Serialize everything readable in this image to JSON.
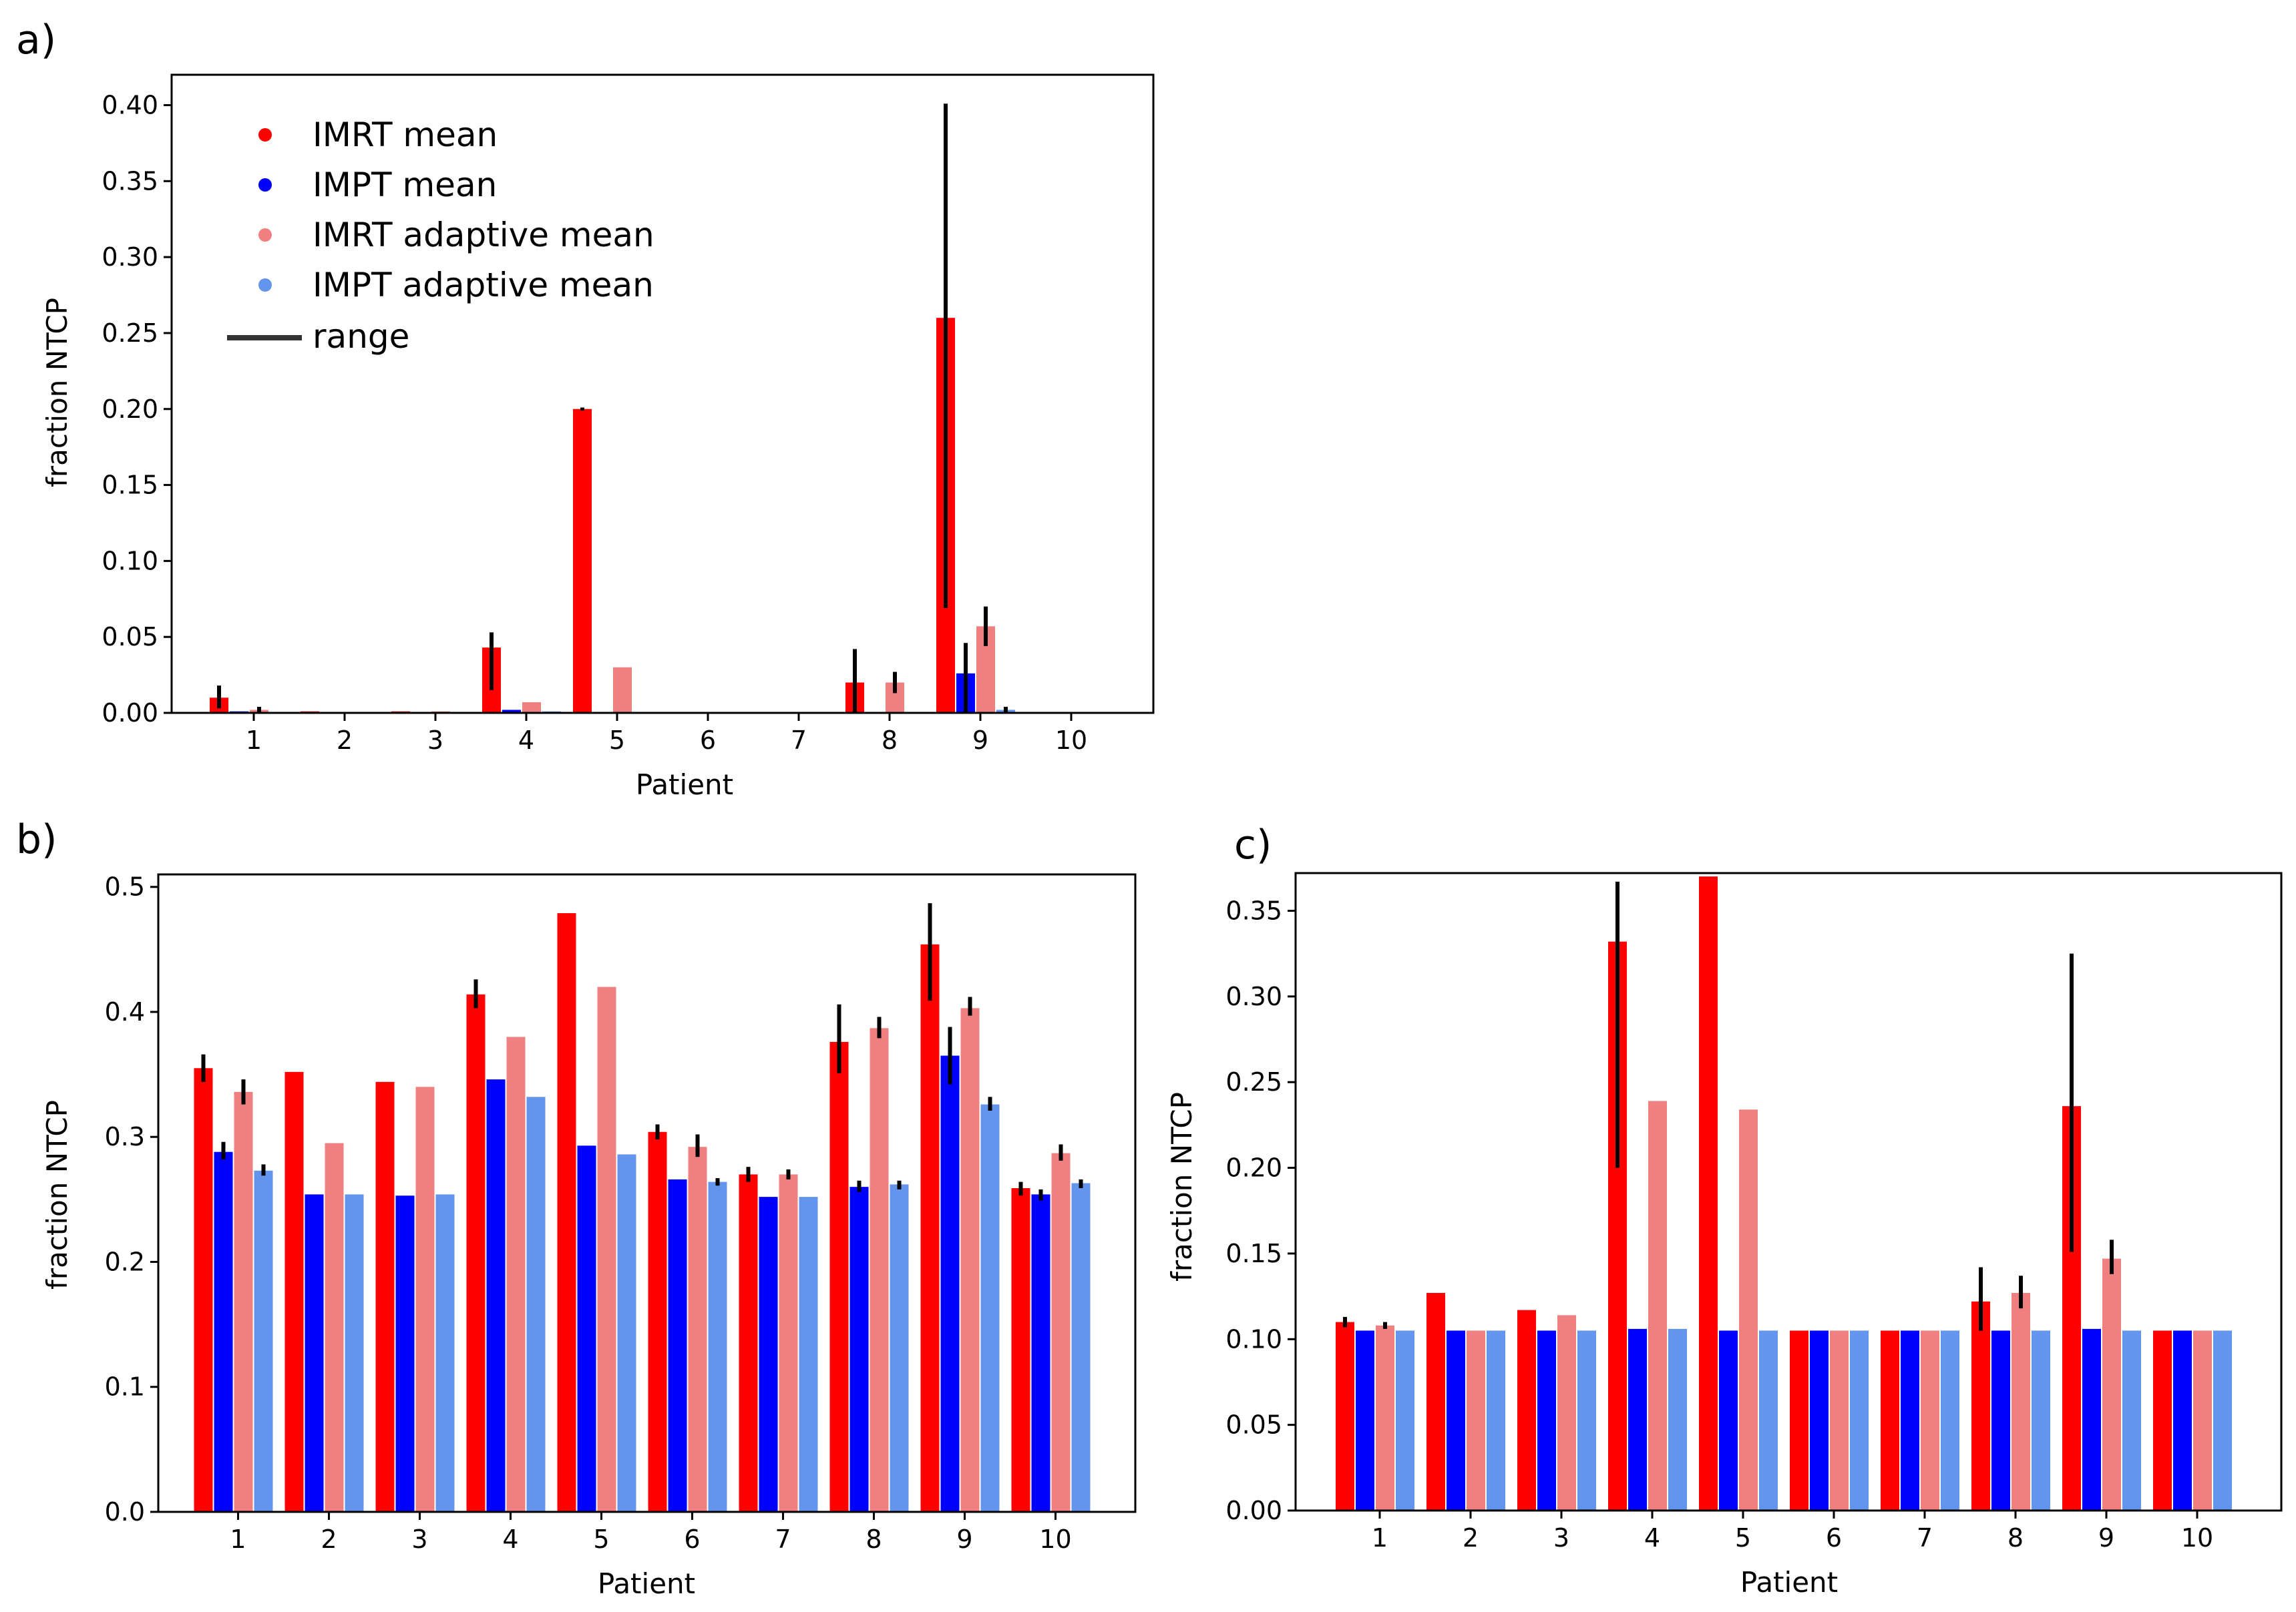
{
  "series_styles": [
    {
      "key": "imrt",
      "color": "#ff0000"
    },
    {
      "key": "impt",
      "color": "#0000ff"
    },
    {
      "key": "imrt_adaptive",
      "color": "#f08080"
    },
    {
      "key": "impt_adaptive",
      "color": "#6495ed"
    }
  ],
  "legend": {
    "items": [
      "IMRT mean",
      "IMPT mean",
      "IMRT adaptive mean",
      "IMPT adaptive mean"
    ],
    "range_label": "range",
    "range_color": "#000000"
  },
  "chart_data": [
    {
      "panel_label": "a)",
      "type": "bar",
      "xlabel": "Patient",
      "ylabel": "fraction NTCP",
      "categories": [
        "1",
        "2",
        "3",
        "4",
        "5",
        "6",
        "7",
        "8",
        "9",
        "10"
      ],
      "ylim": [
        0,
        0.42
      ],
      "yticks": [
        0.0,
        0.05,
        0.1,
        0.15,
        0.2,
        0.25,
        0.3,
        0.35,
        0.4
      ],
      "ytick_labels": [
        "0.00",
        "0.05",
        "0.10",
        "0.15",
        "0.20",
        "0.25",
        "0.30",
        "0.35",
        "0.40"
      ],
      "series": [
        {
          "name": "IMRT mean",
          "values": [
            0.01,
            0.001,
            0.001,
            0.043,
            0.2,
            0.0,
            0.0,
            0.02,
            0.26,
            0.0
          ],
          "ranges": [
            [
              0.003,
              0.018
            ],
            null,
            null,
            [
              0.015,
              0.053
            ],
            [
              0.199,
              0.201
            ],
            null,
            null,
            [
              0.0,
              0.042
            ],
            [
              0.069,
              0.401
            ],
            null
          ]
        },
        {
          "name": "IMPT mean",
          "values": [
            0.001,
            0.0,
            0.0,
            0.002,
            0.0,
            0.0,
            0.0,
            0.0,
            0.026,
            0.0
          ],
          "ranges": [
            null,
            null,
            null,
            null,
            null,
            null,
            null,
            null,
            [
              0.0,
              0.046
            ],
            null
          ]
        },
        {
          "name": "IMRT adaptive mean",
          "values": [
            0.002,
            0.0,
            0.001,
            0.007,
            0.03,
            0.0,
            0.0,
            0.02,
            0.057,
            0.0
          ],
          "ranges": [
            [
              0.0,
              0.004
            ],
            null,
            null,
            null,
            null,
            null,
            null,
            [
              0.013,
              0.027
            ],
            [
              0.044,
              0.07
            ],
            null
          ]
        },
        {
          "name": "IMPT adaptive mean",
          "values": [
            0.0,
            0.0,
            0.0,
            0.001,
            0.0,
            0.0,
            0.0,
            0.0,
            0.002,
            0.0
          ],
          "ranges": [
            null,
            null,
            null,
            null,
            null,
            null,
            null,
            null,
            [
              0.0,
              0.004
            ],
            null
          ]
        }
      ]
    },
    {
      "panel_label": "b)",
      "type": "bar",
      "xlabel": "Patient",
      "ylabel": "fraction NTCP",
      "categories": [
        "1",
        "2",
        "3",
        "4",
        "5",
        "6",
        "7",
        "8",
        "9",
        "10"
      ],
      "ylim": [
        0,
        0.51
      ],
      "yticks": [
        0.0,
        0.1,
        0.2,
        0.3,
        0.4,
        0.5
      ],
      "ytick_labels": [
        "0.0",
        "0.1",
        "0.2",
        "0.3",
        "0.4",
        "0.5"
      ],
      "series": [
        {
          "name": "IMRT mean",
          "values": [
            0.355,
            0.352,
            0.344,
            0.414,
            0.479,
            0.304,
            0.27,
            0.376,
            0.454,
            0.259
          ],
          "ranges": [
            [
              0.344,
              0.366
            ],
            null,
            null,
            [
              0.403,
              0.426
            ],
            null,
            [
              0.298,
              0.31
            ],
            [
              0.264,
              0.276
            ],
            [
              0.351,
              0.406
            ],
            [
              0.409,
              0.487
            ],
            [
              0.253,
              0.264
            ]
          ]
        },
        {
          "name": "IMPT mean",
          "values": [
            0.288,
            0.254,
            0.253,
            0.346,
            0.293,
            0.266,
            0.252,
            0.26,
            0.365,
            0.254
          ],
          "ranges": [
            [
              0.282,
              0.296
            ],
            null,
            null,
            null,
            null,
            null,
            null,
            [
              0.256,
              0.265
            ],
            [
              0.342,
              0.388
            ],
            [
              0.249,
              0.258
            ]
          ]
        },
        {
          "name": "IMRT adaptive mean",
          "values": [
            0.336,
            0.295,
            0.34,
            0.38,
            0.42,
            0.292,
            0.27,
            0.387,
            0.403,
            0.287
          ],
          "ranges": [
            [
              0.326,
              0.346
            ],
            null,
            null,
            null,
            null,
            [
              0.284,
              0.302
            ],
            [
              0.266,
              0.274
            ],
            [
              0.379,
              0.396
            ],
            [
              0.397,
              0.412
            ],
            [
              0.281,
              0.294
            ]
          ]
        },
        {
          "name": "IMPT adaptive mean",
          "values": [
            0.273,
            0.254,
            0.254,
            0.332,
            0.286,
            0.264,
            0.252,
            0.262,
            0.326,
            0.263
          ],
          "ranges": [
            [
              0.269,
              0.278
            ],
            null,
            null,
            null,
            null,
            [
              0.261,
              0.267
            ],
            null,
            [
              0.258,
              0.265
            ],
            [
              0.321,
              0.332
            ],
            [
              0.259,
              0.266
            ]
          ]
        }
      ]
    },
    {
      "panel_label": "c)",
      "type": "bar",
      "xlabel": "Patient",
      "ylabel": "fraction NTCP",
      "categories": [
        "1",
        "2",
        "3",
        "4",
        "5",
        "6",
        "7",
        "8",
        "9",
        "10"
      ],
      "ylim": [
        0,
        0.372
      ],
      "yticks": [
        0.0,
        0.05,
        0.1,
        0.15,
        0.2,
        0.25,
        0.3,
        0.35
      ],
      "ytick_labels": [
        "0.00",
        "0.05",
        "0.10",
        "0.15",
        "0.20",
        "0.25",
        "0.30",
        "0.35"
      ],
      "series": [
        {
          "name": "IMRT mean",
          "values": [
            0.11,
            0.127,
            0.117,
            0.332,
            0.37,
            0.105,
            0.105,
            0.122,
            0.236,
            0.105
          ],
          "ranges": [
            [
              0.107,
              0.113
            ],
            null,
            null,
            [
              0.2,
              0.367
            ],
            null,
            null,
            null,
            [
              0.105,
              0.142
            ],
            [
              0.151,
              0.325
            ],
            null
          ]
        },
        {
          "name": "IMPT mean",
          "values": [
            0.105,
            0.105,
            0.105,
            0.106,
            0.105,
            0.105,
            0.105,
            0.105,
            0.106,
            0.105
          ],
          "ranges": [
            null,
            null,
            null,
            null,
            null,
            null,
            null,
            null,
            null,
            null
          ]
        },
        {
          "name": "IMRT adaptive mean",
          "values": [
            0.108,
            0.105,
            0.114,
            0.239,
            0.234,
            0.105,
            0.105,
            0.127,
            0.147,
            0.105
          ],
          "ranges": [
            [
              0.106,
              0.11
            ],
            null,
            null,
            null,
            null,
            null,
            null,
            [
              0.118,
              0.137
            ],
            [
              0.138,
              0.158
            ],
            null
          ]
        },
        {
          "name": "IMPT adaptive mean",
          "values": [
            0.105,
            0.105,
            0.105,
            0.106,
            0.105,
            0.105,
            0.105,
            0.105,
            0.105,
            0.105
          ],
          "ranges": [
            null,
            null,
            null,
            null,
            null,
            null,
            null,
            null,
            null,
            null
          ]
        }
      ]
    }
  ]
}
